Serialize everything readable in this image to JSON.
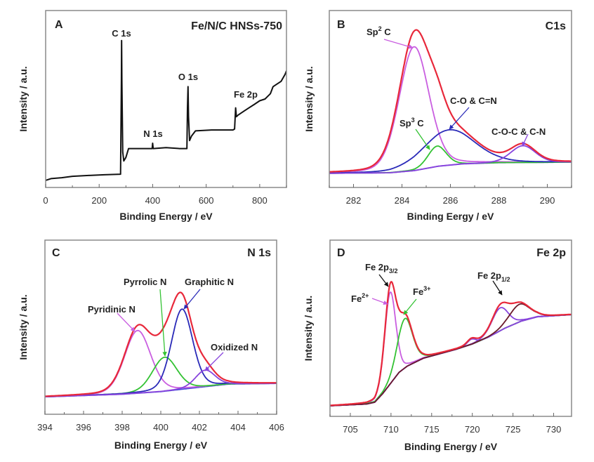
{
  "chart_data": [
    {
      "type": "line",
      "panel": "A",
      "title": "Fe/N/C HNSs-750",
      "xlabel": "Binding Energy / eV",
      "ylabel": "Intensity / a.u.",
      "xlim": [
        0,
        900
      ],
      "ylim": [
        0,
        100
      ],
      "xticks": [
        0,
        200,
        400,
        600,
        800
      ],
      "minor_step": 100,
      "grid": false,
      "annotations": [
        "C 1s",
        "N 1s",
        "O 1s",
        "Fe 2p"
      ],
      "series": [
        {
          "color": "#111111",
          "points": [
            [
              0,
              4
            ],
            [
              20,
              5
            ],
            [
              60,
              5.5
            ],
            [
              100,
              6.3
            ],
            [
              160,
              6.8
            ],
            [
              220,
              7.2
            ],
            [
              280,
              7.5
            ],
            [
              283,
              60
            ],
            [
              284,
              83
            ],
            [
              285,
              60
            ],
            [
              288,
              20
            ],
            [
              292,
              15
            ],
            [
              300,
              17
            ],
            [
              310,
              22
            ],
            [
              350,
              22
            ],
            [
              398,
              22
            ],
            [
              400,
              25
            ],
            [
              402,
              22
            ],
            [
              450,
              22.5
            ],
            [
              500,
              22
            ],
            [
              528,
              22
            ],
            [
              530,
              45
            ],
            [
              532,
              57
            ],
            [
              534,
              40
            ],
            [
              538,
              26.5
            ],
            [
              545,
              29
            ],
            [
              560,
              32
            ],
            [
              620,
              32.5
            ],
            [
              700,
              32.5
            ],
            [
              706,
              33
            ],
            [
              710,
              45
            ],
            [
              713,
              40
            ],
            [
              720,
              41
            ],
            [
              740,
              43
            ],
            [
              760,
              45
            ],
            [
              780,
              47
            ],
            [
              800,
              49
            ],
            [
              820,
              50
            ],
            [
              840,
              53
            ],
            [
              850,
              57
            ],
            [
              860,
              58
            ],
            [
              880,
              60
            ],
            [
              895,
              64
            ],
            [
              900,
              66
            ]
          ]
        }
      ]
    },
    {
      "type": "line",
      "panel": "B",
      "title": "C1s",
      "xlabel": "Binding Eergy / eV",
      "ylabel": "Intensity / a.u.",
      "xlim": [
        281,
        291
      ],
      "ylim": [
        0,
        100
      ],
      "xticks": [
        282,
        284,
        286,
        288,
        290
      ],
      "minor_step": 1,
      "grid": false,
      "background": {
        "color": "#7a4ae0",
        "points": [
          [
            281,
            8
          ],
          [
            283.5,
            8.3
          ],
          [
            284.5,
            9.5
          ],
          [
            285.5,
            12
          ],
          [
            286.5,
            13.3
          ],
          [
            288,
            14
          ],
          [
            291,
            14.3
          ]
        ]
      },
      "envelope": {
        "color": "#e8283a"
      },
      "peaks": [
        {
          "name": "Sp2 C",
          "label": {
            "base": "Sp",
            "sup": "2",
            "after": " C"
          },
          "center": 284.5,
          "height": 70,
          "fwhm": 1.45,
          "color": "#c95ee0"
        },
        {
          "name": "Sp3 C",
          "label": {
            "base": "Sp",
            "sup": "3",
            "after": " C"
          },
          "center": 285.45,
          "height": 11.5,
          "fwhm": 0.9,
          "color": "#33c233"
        },
        {
          "name": "C-O & C=N",
          "label": {
            "base": "C-O & C=N"
          },
          "center": 285.95,
          "height": 20,
          "fwhm": 2.5,
          "color": "#2a2ab8"
        },
        {
          "name": "C-O-C & C-N",
          "label": {
            "base": "C-O-C & C-N"
          },
          "center": 289.0,
          "height": 9.5,
          "fwhm": 1.2,
          "color": "#8844dd"
        }
      ]
    },
    {
      "type": "line",
      "panel": "C",
      "title": "N 1s",
      "xlabel": "Binding Energy / eV",
      "ylabel": "Intensity / a.u.",
      "xlim": [
        394,
        406
      ],
      "ylim": [
        0,
        100
      ],
      "xticks": [
        394,
        396,
        398,
        400,
        402,
        404,
        406
      ],
      "minor_step": 1,
      "grid": false,
      "background": {
        "color": "#4a4ad8",
        "points": [
          [
            394,
            10
          ],
          [
            398,
            11.5
          ],
          [
            400,
            13
          ],
          [
            402,
            15.5
          ],
          [
            403.5,
            17.3
          ],
          [
            406,
            17.7
          ]
        ]
      },
      "envelope": {
        "color": "#e8283a"
      },
      "peaks": [
        {
          "name": "Pyridinic N",
          "label": {
            "base": "Pyridinic N"
          },
          "center": 398.8,
          "height": 36,
          "fwhm": 1.6,
          "color": "#c95ee0"
        },
        {
          "name": "Pyrrolic N",
          "label": {
            "base": "Pyrrolic N"
          },
          "center": 400.2,
          "height": 19.5,
          "fwhm": 1.5,
          "color": "#33c233"
        },
        {
          "name": "Graphitic N",
          "label": {
            "base": "Graphitic N"
          },
          "center": 401.1,
          "height": 46,
          "fwhm": 1.3,
          "color": "#2a2ab8"
        },
        {
          "name": "Oxidized N",
          "label": {
            "base": "Oxidized N"
          },
          "center": 402.3,
          "height": 9.5,
          "fwhm": 1.2,
          "color": "#8844dd"
        }
      ]
    },
    {
      "type": "line",
      "panel": "D",
      "title": "Fe 2p",
      "xlabel": "Binding Energy / eV",
      "ylabel": "Intensity / a.u.",
      "xlim": [
        702.5,
        732.2
      ],
      "ylim": [
        0,
        100
      ],
      "xticks": [
        705,
        710,
        715,
        720,
        725,
        730
      ],
      "minor_step": 2.5,
      "grid": false,
      "background": {
        "color": "#5a50e0",
        "points": [
          [
            702.5,
            6
          ],
          [
            707,
            7
          ],
          [
            708,
            8
          ],
          [
            709,
            13
          ],
          [
            710,
            19
          ],
          [
            711,
            25
          ],
          [
            712,
            28.5
          ],
          [
            714,
            33
          ],
          [
            716,
            35.5
          ],
          [
            718,
            38
          ],
          [
            720,
            41
          ],
          [
            722,
            45
          ],
          [
            724,
            50
          ],
          [
            726,
            54
          ],
          [
            728,
            56.5
          ],
          [
            732.2,
            57.7
          ]
        ]
      },
      "envelope": {
        "color": "#e8283a"
      },
      "group_labels": [
        {
          "base": "Fe 2p",
          "sub": "3/2"
        },
        {
          "base": "Fe 2p",
          "sub": "1/2"
        }
      ],
      "peaks": [
        {
          "name": "Fe2+",
          "label": {
            "base": "Fe",
            "sup": "2+"
          },
          "center": 709.9,
          "height": 52,
          "fwhm": 1.6,
          "color": "#c95ee0"
        },
        {
          "name": "Fe3+",
          "label": {
            "base": "Fe",
            "sup": "3+"
          },
          "center": 711.7,
          "height": 28,
          "fwhm": 2.2,
          "color": "#33c233"
        },
        {
          "center": 719.9,
          "height": 3,
          "fwhm": 1.2,
          "color": "#8844dd"
        },
        {
          "center": 723.4,
          "height": 13,
          "fwhm": 2.4,
          "color": "#8844dd"
        },
        {
          "center": 725.8,
          "height": 10,
          "fwhm": 3.0,
          "color": "#6a1a2a"
        }
      ]
    }
  ]
}
